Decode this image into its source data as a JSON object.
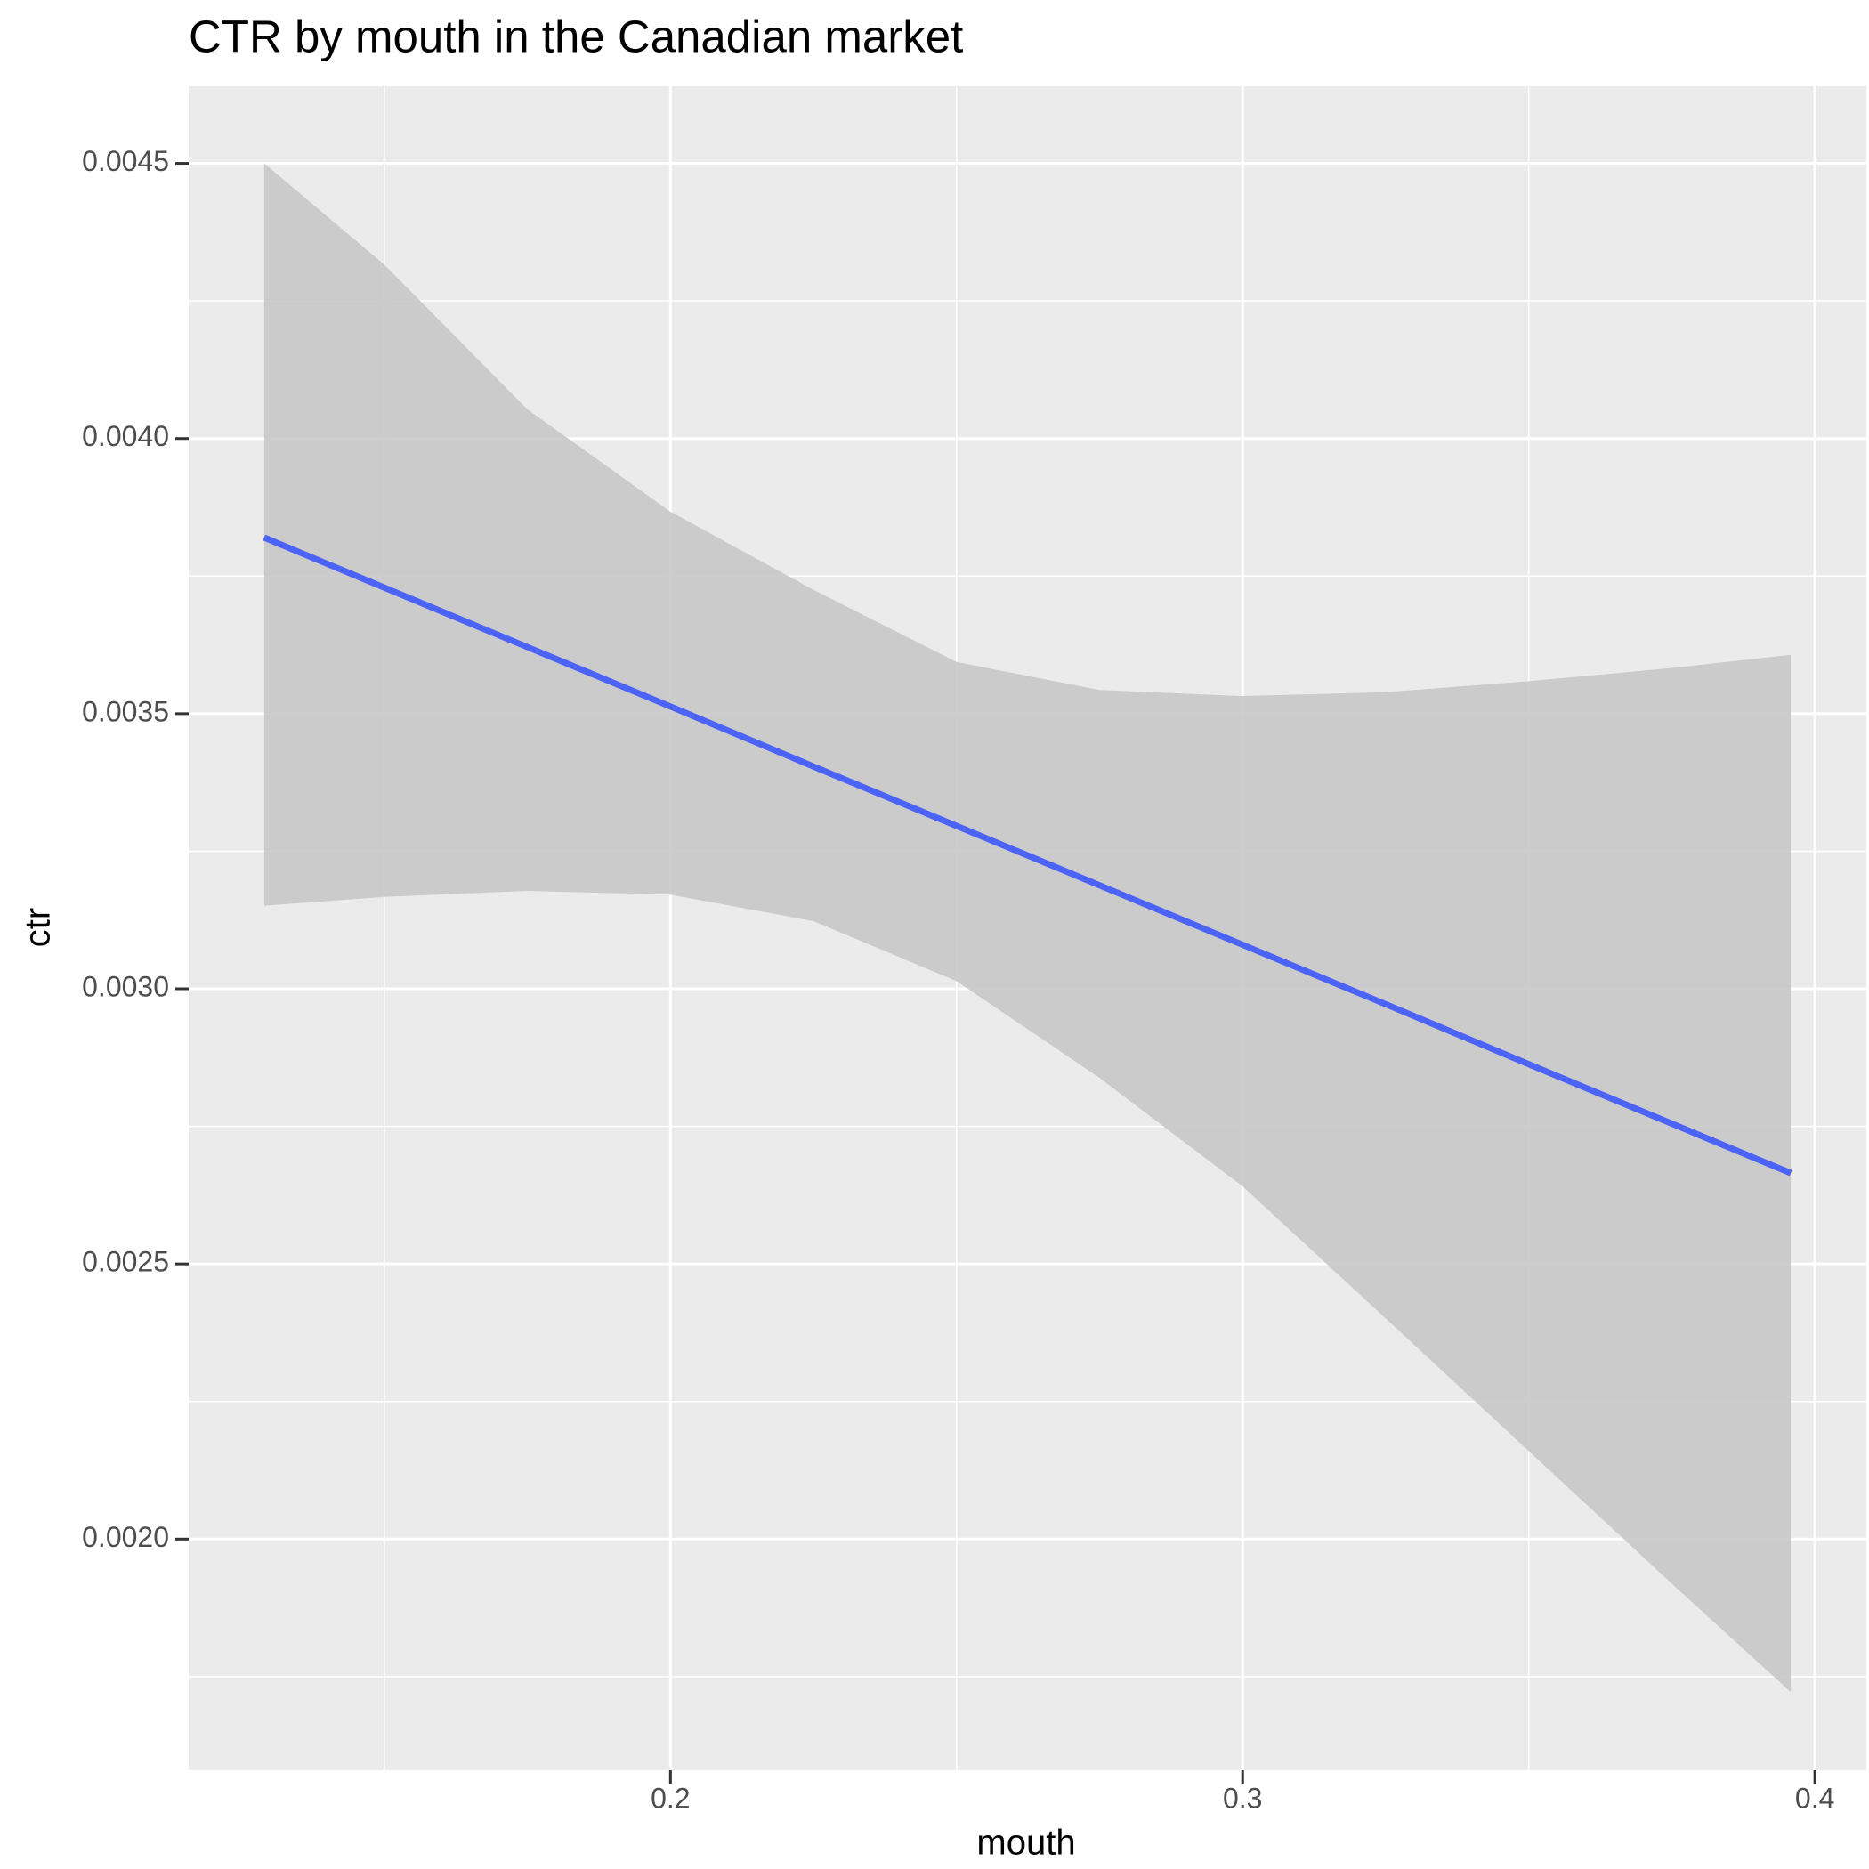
{
  "chart_data": {
    "type": "smooth",
    "title": "CTR by mouth in the Canadian market",
    "x_label": "mouth",
    "y_label": "ctr",
    "x": [
      0.129,
      0.15,
      0.175,
      0.2,
      0.225,
      0.25,
      0.275,
      0.3,
      0.325,
      0.35,
      0.375,
      0.3958
    ],
    "fit": {
      "color": "#4c63f7",
      "band_color": "#c8c8c8",
      "values": [
        0.00382,
        0.003729,
        0.003621,
        0.003513,
        0.003404,
        0.003296,
        0.003188,
        0.00308,
        0.002972,
        0.002863,
        0.002755,
        0.002665
      ],
      "lower": [
        0.003151,
        0.003167,
        0.003178,
        0.003171,
        0.003123,
        0.003014,
        0.002838,
        0.002641,
        0.002401,
        0.00216,
        0.001919,
        0.001722
      ],
      "upper": [
        0.0045,
        0.004316,
        0.004053,
        0.003867,
        0.003725,
        0.003594,
        0.003543,
        0.003532,
        0.003539,
        0.003559,
        0.003583,
        0.003607
      ]
    },
    "xlim": [
      0.1158,
      0.409
    ],
    "ylim": [
      0.00158,
      0.00464
    ],
    "xticks": [
      0.2,
      0.3,
      0.4
    ],
    "yticks": [
      {
        "value": 0.002,
        "label": "0.0020"
      },
      {
        "value": 0.0025,
        "label": "0.0025"
      },
      {
        "value": 0.003,
        "label": "0.0030"
      },
      {
        "value": 0.0035,
        "label": "0.0035"
      },
      {
        "value": 0.004,
        "label": "0.0040"
      },
      {
        "value": 0.0045,
        "label": "0.0045"
      }
    ],
    "grid": true,
    "minor_grid": true,
    "panel_color": "#ebebeb"
  }
}
